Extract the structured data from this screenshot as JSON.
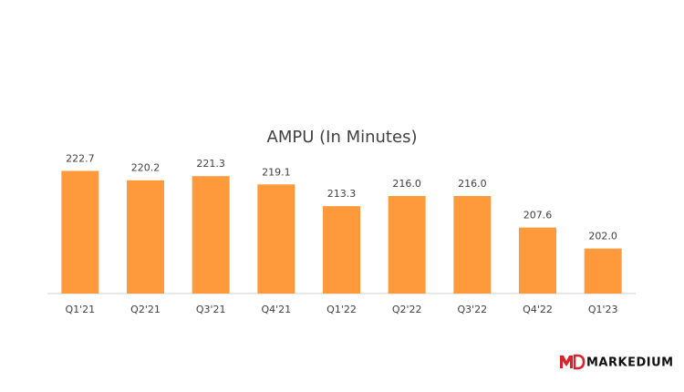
{
  "chart_data": {
    "type": "bar",
    "title": "AMPU (In Minutes)",
    "categories": [
      "Q1'21",
      "Q2'21",
      "Q3'21",
      "Q4'21",
      "Q1'22",
      "Q2'22",
      "Q3'22",
      "Q4'22",
      "Q1'23"
    ],
    "values": [
      222.7,
      220.2,
      221.3,
      219.1,
      213.3,
      216.0,
      216.0,
      207.6,
      202.0
    ],
    "value_labels": [
      "222.7",
      "220.2",
      "221.3",
      "219.1",
      "213.3",
      "216.0",
      "216.0",
      "207.6",
      "202.0"
    ],
    "color": "#ff9a3c",
    "ylim": [
      190,
      225
    ]
  },
  "logo": "MARKEDIUM"
}
